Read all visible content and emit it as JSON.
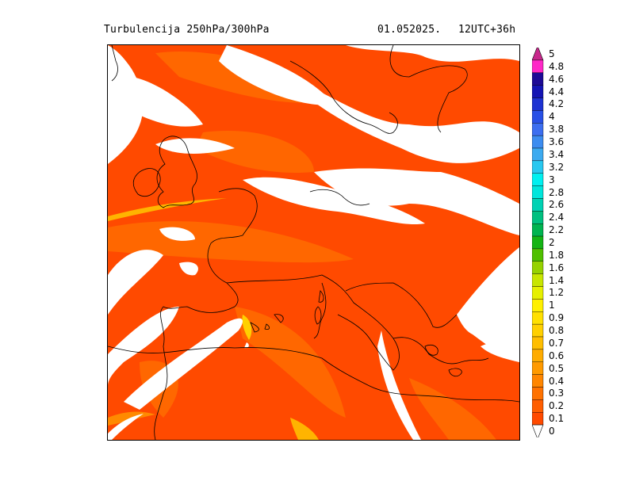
{
  "header": {
    "title": "Turbulencija 250hPa/300hPa",
    "date": "01.052025.",
    "valid": "12UTC+36h"
  },
  "map": {
    "region": "Europe",
    "background_color": "#ff4a00",
    "no_data_color": "#ffffff",
    "coastline_color": "#000000"
  },
  "colorbar": {
    "levels": [
      {
        "label": "0",
        "color": "#ffffff"
      },
      {
        "label": "0.1",
        "color": "#ff4a00"
      },
      {
        "label": "0.2",
        "color": "#ff5e00"
      },
      {
        "label": "0.3",
        "color": "#ff7200"
      },
      {
        "label": "0.4",
        "color": "#ff8600"
      },
      {
        "label": "0.5",
        "color": "#ff9a00"
      },
      {
        "label": "0.6",
        "color": "#ffac00"
      },
      {
        "label": "0.7",
        "color": "#ffbe00"
      },
      {
        "label": "0.8",
        "color": "#ffd000"
      },
      {
        "label": "0.9",
        "color": "#ffe000"
      },
      {
        "label": "1",
        "color": "#fff000"
      },
      {
        "label": "1.2",
        "color": "#e6f000"
      },
      {
        "label": "1.4",
        "color": "#c8e600"
      },
      {
        "label": "1.6",
        "color": "#96d200"
      },
      {
        "label": "1.8",
        "color": "#50c000"
      },
      {
        "label": "2",
        "color": "#14b414"
      },
      {
        "label": "2.2",
        "color": "#00b450"
      },
      {
        "label": "2.4",
        "color": "#00c080"
      },
      {
        "label": "2.6",
        "color": "#00d2b4"
      },
      {
        "label": "2.8",
        "color": "#00e6dc"
      },
      {
        "label": "3",
        "color": "#00f0f0"
      },
      {
        "label": "3.2",
        "color": "#28c8f0"
      },
      {
        "label": "3.4",
        "color": "#3caaf0"
      },
      {
        "label": "3.6",
        "color": "#3c8cf0"
      },
      {
        "label": "3.8",
        "color": "#3c6ef0"
      },
      {
        "label": "4",
        "color": "#2850e6"
      },
      {
        "label": "4.2",
        "color": "#1e32d2"
      },
      {
        "label": "4.4",
        "color": "#1414b4"
      },
      {
        "label": "4.6",
        "color": "#1e0a96"
      },
      {
        "label": "4.8",
        "color": "#ff28c8"
      },
      {
        "label": "5",
        "color": "#c8288c"
      }
    ]
  }
}
